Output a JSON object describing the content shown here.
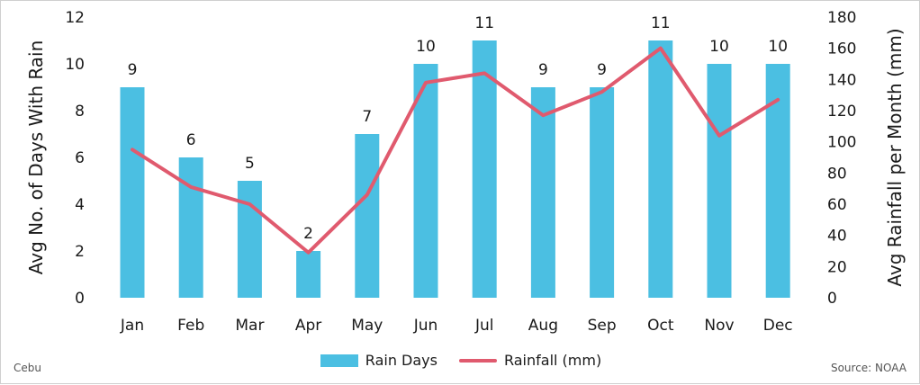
{
  "chart_data": {
    "type": "bar+line",
    "categories": [
      "Jan",
      "Feb",
      "Mar",
      "Apr",
      "May",
      "Jun",
      "Jul",
      "Aug",
      "Sep",
      "Oct",
      "Nov",
      "Dec"
    ],
    "series": [
      {
        "name": "Rain Days",
        "type": "bar",
        "axis": "left",
        "color": "#4bbfe2",
        "values": [
          9,
          6,
          5,
          2,
          7,
          10,
          11,
          9,
          9,
          11,
          10,
          10
        ]
      },
      {
        "name": "Rainfall (mm)",
        "type": "line",
        "axis": "right",
        "color": "#e05a6e",
        "values": [
          95,
          71,
          60,
          29,
          66,
          138,
          144,
          117,
          132,
          160,
          104,
          127
        ]
      }
    ],
    "ylabel": "Avg No. of Days With Rain",
    "y2label": "Avg Rainfall per Month (mm)",
    "ylim": [
      0,
      12
    ],
    "yticks": [
      0,
      2,
      4,
      6,
      8,
      10,
      12
    ],
    "y2lim": [
      0,
      180
    ],
    "y2ticks": [
      0,
      20,
      40,
      60,
      80,
      100,
      120,
      140,
      160,
      180
    ],
    "grid": false,
    "legend": "bottom"
  },
  "footer": {
    "left": "Cebu",
    "right": "Source: NOAA"
  }
}
